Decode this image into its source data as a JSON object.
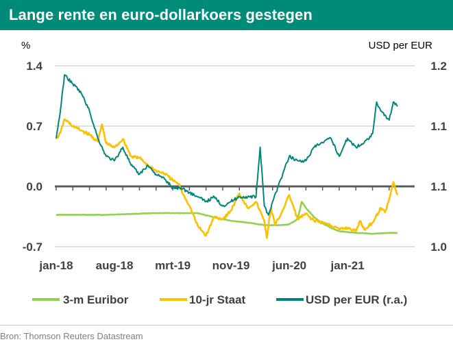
{
  "title": "Lange rente en euro-dollarkoers gestegen",
  "source": "Bron: Thomson Reuters Datastream",
  "colors": {
    "header": "#008a78",
    "euribor": "#92d050",
    "staat": "#ffc000",
    "usd": "#00857a"
  },
  "chart_data": {
    "type": "line",
    "title": "Lange rente en euro-dollarkoers gestegen",
    "ylabel_left": "%",
    "ylabel_right": "USD per EUR",
    "ylim_left": [
      -0.7,
      1.4
    ],
    "ylim_right": [
      1.0,
      1.2
    ],
    "yticks_left": [
      "1.4",
      "0.7",
      "0.0",
      "-0.7"
    ],
    "yticks_right": [
      "1.2",
      "1.1",
      "1.1",
      "1.0"
    ],
    "xticks": [
      "jan-18",
      "aug-18",
      "mrt-19",
      "nov-19",
      "jun-20",
      "jan-21"
    ],
    "x_range_months": [
      0,
      41
    ],
    "series": [
      {
        "name": "3-m Euribor",
        "axis": "left",
        "color": "#92d050",
        "x": [
          0,
          3,
          6,
          9,
          12,
          15,
          17,
          19,
          21,
          23,
          25,
          27,
          28,
          29,
          29.5,
          30,
          31,
          32,
          33,
          34,
          36,
          38,
          40,
          41
        ],
        "y": [
          -0.33,
          -0.33,
          -0.33,
          -0.32,
          -0.31,
          -0.31,
          -0.31,
          -0.36,
          -0.4,
          -0.42,
          -0.45,
          -0.45,
          -0.44,
          -0.38,
          -0.18,
          -0.25,
          -0.36,
          -0.43,
          -0.48,
          -0.52,
          -0.54,
          -0.55,
          -0.54,
          -0.54
        ]
      },
      {
        "name": "10-jr Staat",
        "axis": "left",
        "color": "#ffc000",
        "x": [
          0,
          0.5,
          1,
          2,
          3,
          4,
          5,
          5.5,
          6,
          7,
          8,
          9,
          10,
          11,
          12,
          13,
          14,
          14.7,
          15.3,
          16,
          17,
          18,
          19,
          20,
          21,
          22,
          23,
          24,
          25,
          25.3,
          25.8,
          26.3,
          27,
          28,
          29,
          30,
          31,
          32,
          33,
          34,
          35,
          36,
          36.5,
          37,
          38,
          39,
          39.5,
          40,
          40.5,
          41
        ],
        "y": [
          0.55,
          0.62,
          0.78,
          0.7,
          0.65,
          0.6,
          0.52,
          0.72,
          0.5,
          0.45,
          0.55,
          0.35,
          0.33,
          0.25,
          0.18,
          0.15,
          0.07,
          0.03,
          -0.1,
          -0.22,
          -0.46,
          -0.57,
          -0.35,
          -0.38,
          -0.28,
          -0.08,
          -0.25,
          -0.18,
          -0.4,
          -0.6,
          -0.25,
          -0.45,
          -0.32,
          -0.1,
          -0.38,
          -0.32,
          -0.4,
          -0.42,
          -0.45,
          -0.5,
          -0.48,
          -0.52,
          -0.4,
          -0.5,
          -0.42,
          -0.25,
          -0.3,
          -0.15,
          0.05,
          -0.1
        ]
      },
      {
        "name": "USD per EUR (r.a.)",
        "axis": "right",
        "color": "#00857a",
        "x": [
          0,
          0.5,
          1,
          2,
          3,
          4,
          5,
          6,
          7,
          8,
          9,
          10,
          11,
          12,
          13,
          14,
          15,
          16,
          17,
          18,
          19,
          20,
          21,
          22,
          23,
          24,
          24.5,
          25,
          25.5,
          26,
          27,
          28,
          29,
          30,
          31,
          32,
          33,
          34,
          35,
          36,
          37,
          38,
          38.5,
          39,
          40,
          40.5,
          41
        ],
        "y": [
          1.12,
          1.15,
          1.19,
          1.18,
          1.17,
          1.15,
          1.12,
          1.1,
          1.095,
          1.11,
          1.09,
          1.08,
          1.09,
          1.08,
          1.075,
          1.065,
          1.065,
          1.06,
          1.055,
          1.05,
          1.055,
          1.045,
          1.05,
          1.055,
          1.055,
          1.055,
          1.11,
          1.045,
          1.035,
          1.05,
          1.075,
          1.1,
          1.095,
          1.095,
          1.11,
          1.115,
          1.12,
          1.1,
          1.12,
          1.11,
          1.115,
          1.125,
          1.16,
          1.15,
          1.14,
          1.16,
          1.155
        ]
      }
    ]
  }
}
